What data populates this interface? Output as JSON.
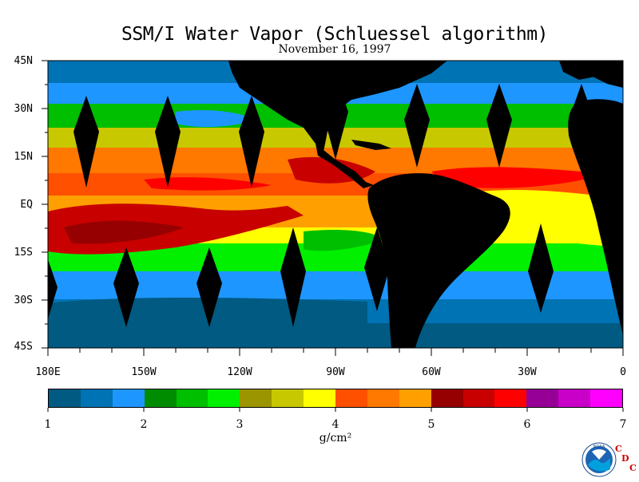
{
  "title": "SSM/I Water Vapor (Schluessel algorithm)",
  "subtitle": "November 16, 1997",
  "latitude_labels": [
    "45N",
    "30N",
    "15N",
    "EQ",
    "15S",
    "30S",
    "45S"
  ],
  "longitude_labels": [
    "180E",
    "150W",
    "120W",
    "90W",
    "60W",
    "30W",
    "0"
  ],
  "colorbar": {
    "labels": [
      "1",
      "2",
      "3",
      "4",
      "5",
      "6",
      "7"
    ],
    "units": "g/cm²",
    "colors": [
      "#005a82",
      "#0073b4",
      "#1e96ff",
      "#008c00",
      "#00be00",
      "#00f000",
      "#9b9600",
      "#c8c800",
      "#ffff00",
      "#ff5000",
      "#ff7800",
      "#ffa000",
      "#960000",
      "#c80000",
      "#ff0000",
      "#960096",
      "#c800c8",
      "#ff00ff"
    ]
  },
  "logo": {
    "text": "NOAA",
    "letters": [
      "C",
      "D",
      "C"
    ]
  },
  "colors": {
    "land": "#000000",
    "gap": "#000000",
    "ocean_background": "#1e96ff"
  }
}
